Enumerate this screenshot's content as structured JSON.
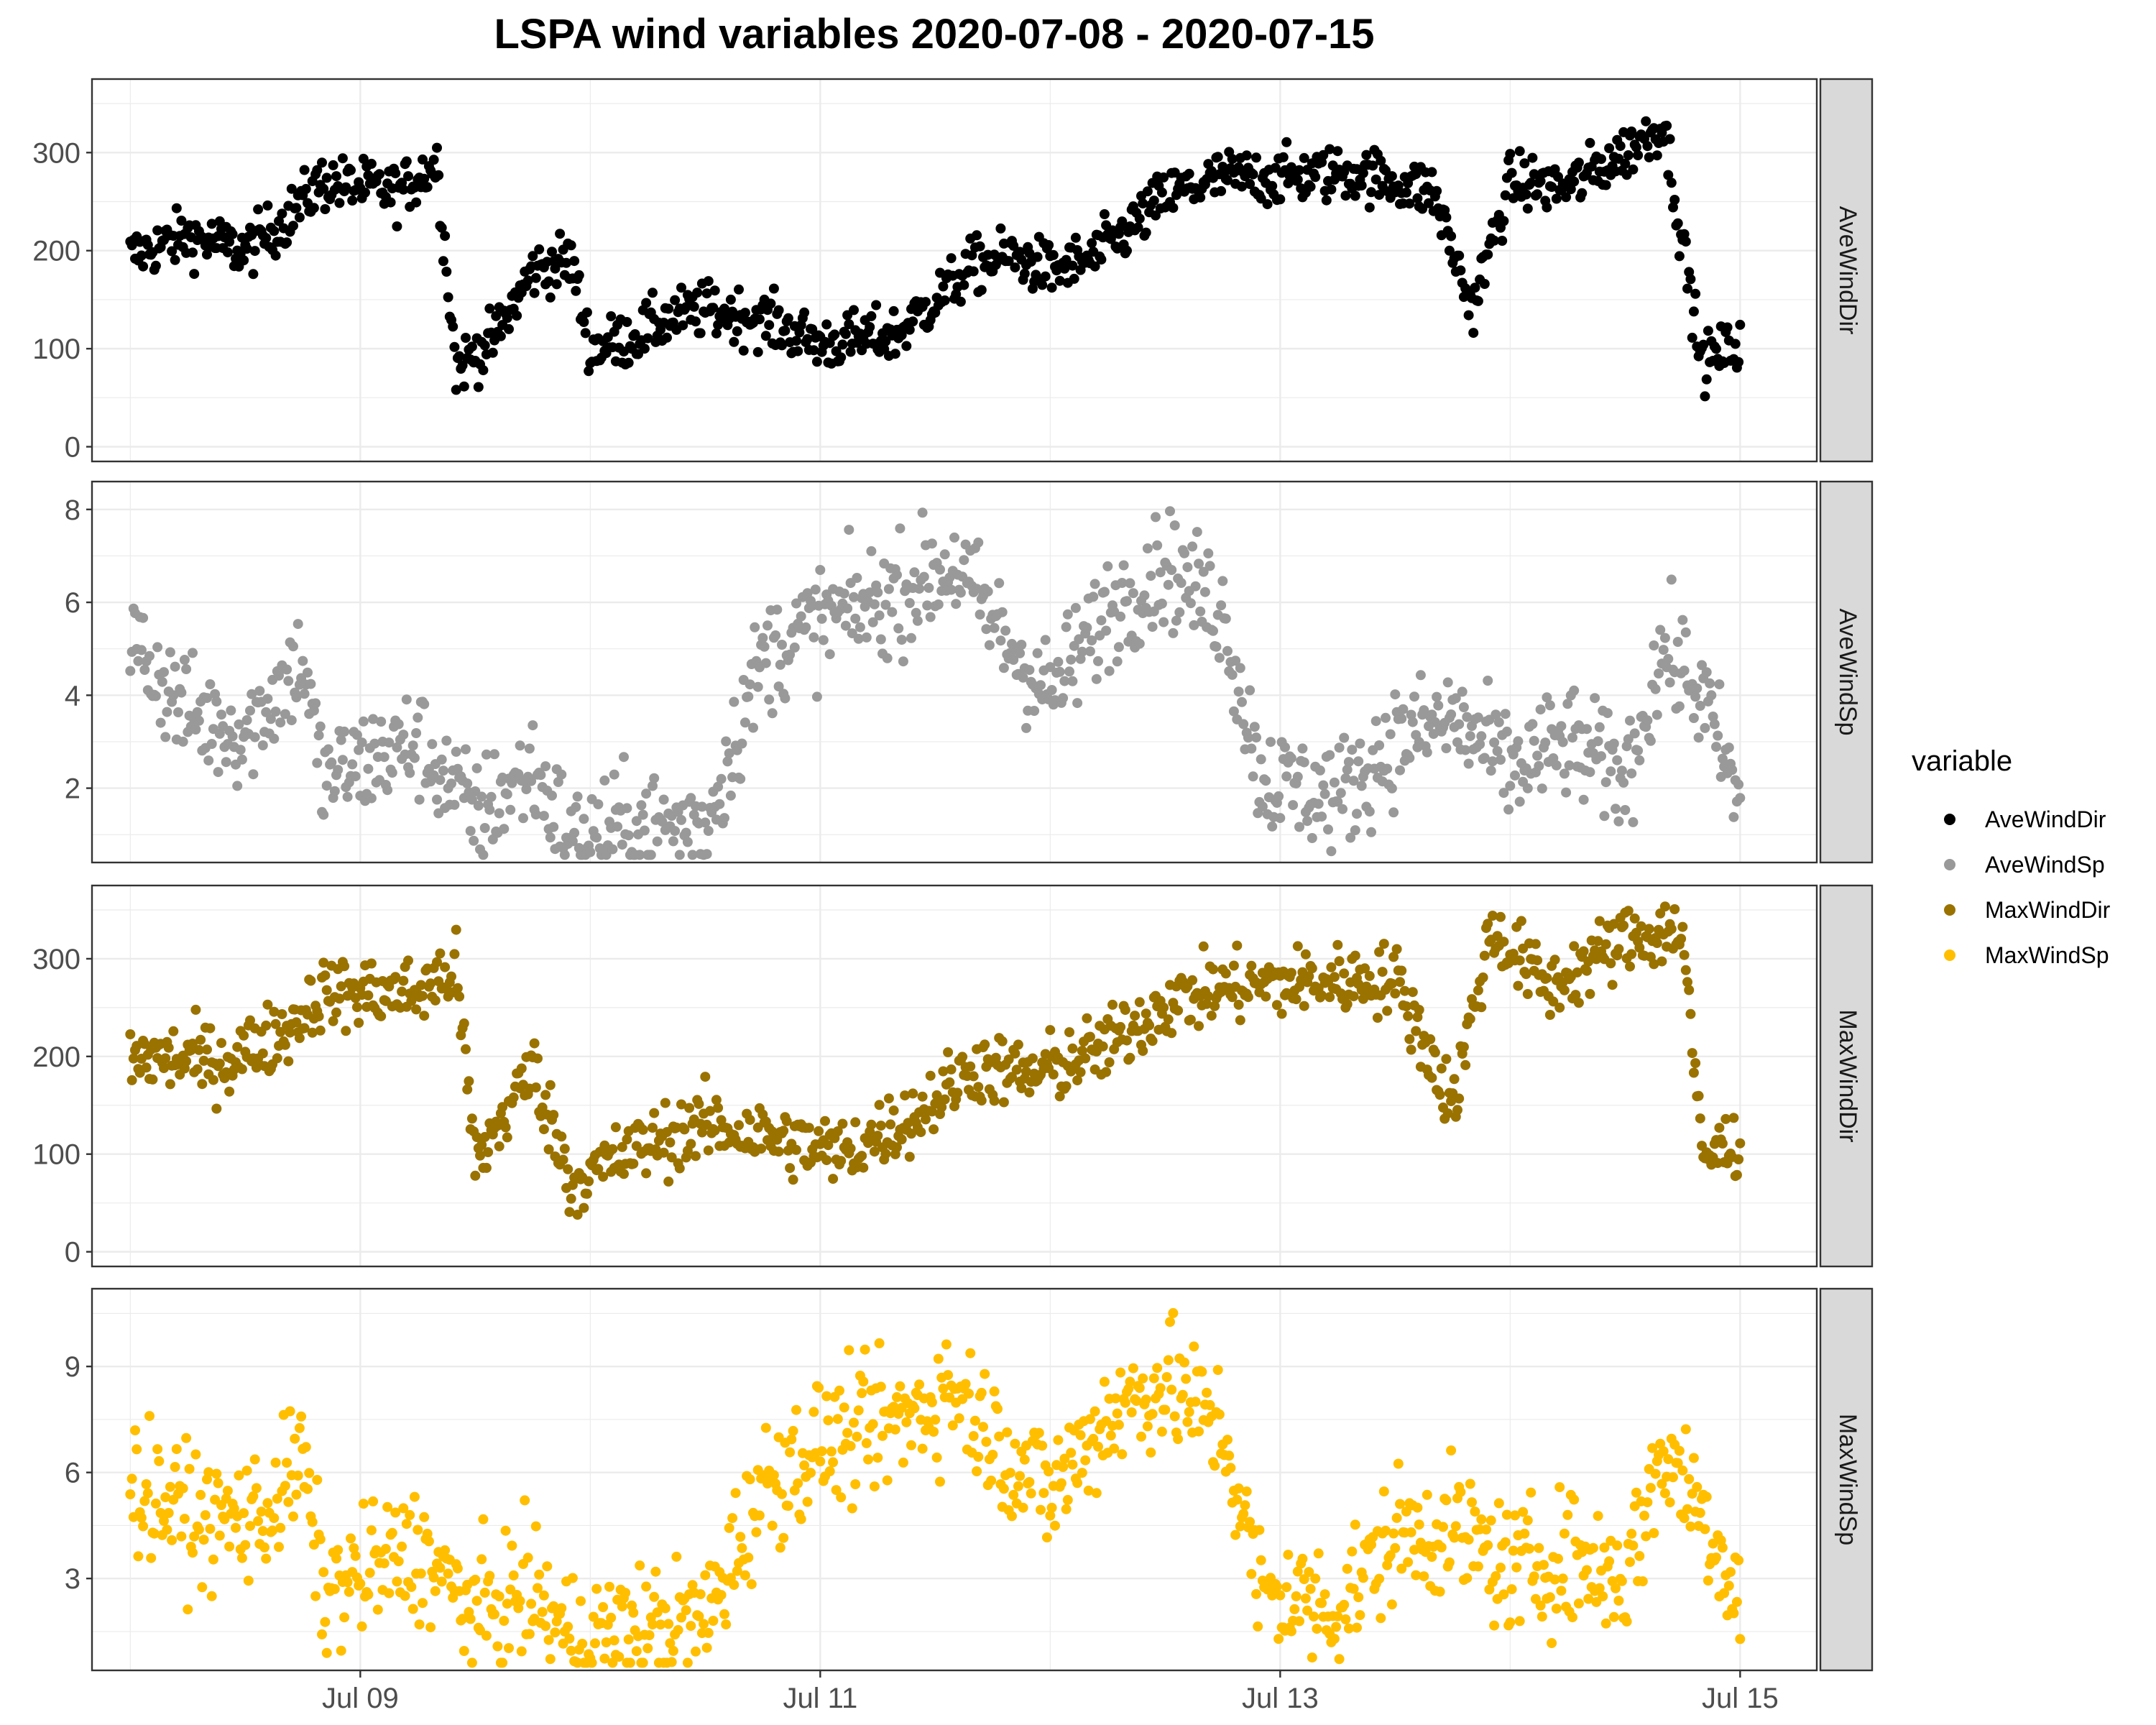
{
  "chart_data": {
    "type": "scatter",
    "title": "LSPA wind variables 2020-07-08 - 2020-07-15",
    "xlabel": "",
    "ylabel": "",
    "x_range": [
      "2020-07-07T20:00",
      "2020-07-15T08:00"
    ],
    "x_ticks": [
      {
        "label": "Jul 09",
        "value": "2020-07-09T00:00"
      },
      {
        "label": "Jul 11",
        "value": "2020-07-11T00:00"
      },
      {
        "label": "Jul 13",
        "value": "2020-07-13T00:00"
      },
      {
        "label": "Jul 15",
        "value": "2020-07-15T00:00"
      }
    ],
    "grid": true,
    "legend": {
      "title": "variable",
      "position": "right"
    },
    "panels": [
      {
        "name": "AveWindDir",
        "color": "#000000",
        "ylim": [
          -15,
          375
        ],
        "yticks": [
          0,
          100,
          200,
          300
        ],
        "profile": [
          [
            "2020-07-08T00:00",
            195
          ],
          [
            "2020-07-08T06:00",
            215
          ],
          [
            "2020-07-08T12:00",
            200
          ],
          [
            "2020-07-08T16:00",
            230
          ],
          [
            "2020-07-08T20:00",
            270
          ],
          [
            "2020-07-09T04:00",
            260
          ],
          [
            "2020-07-09T08:00",
            290
          ],
          [
            "2020-07-09T10:00",
            80
          ],
          [
            "2020-07-09T14:00",
            110
          ],
          [
            "2020-07-09T18:00",
            180
          ],
          [
            "2020-07-09T22:00",
            190
          ],
          [
            "2020-07-10T00:00",
            100
          ],
          [
            "2020-07-10T04:00",
            110
          ],
          [
            "2020-07-10T08:00",
            130
          ],
          [
            "2020-07-10T12:00",
            140
          ],
          [
            "2020-07-10T18:00",
            130
          ],
          [
            "2020-07-11T00:00",
            105
          ],
          [
            "2020-07-11T08:00",
            115
          ],
          [
            "2020-07-11T16:00",
            185
          ],
          [
            "2020-07-11T20:00",
            195
          ],
          [
            "2020-07-12T00:00",
            180
          ],
          [
            "2020-07-12T04:00",
            190
          ],
          [
            "2020-07-12T08:00",
            220
          ],
          [
            "2020-07-12T12:00",
            255
          ],
          [
            "2020-07-12T18:00",
            275
          ],
          [
            "2020-07-13T00:00",
            275
          ],
          [
            "2020-07-13T08:00",
            280
          ],
          [
            "2020-07-13T16:00",
            260
          ],
          [
            "2020-07-13T20:00",
            140
          ],
          [
            "2020-07-14T00:00",
            270
          ],
          [
            "2020-07-14T06:00",
            265
          ],
          [
            "2020-07-14T12:00",
            300
          ],
          [
            "2020-07-14T16:00",
            330
          ],
          [
            "2020-07-14T20:00",
            85
          ],
          [
            "2020-07-15T00:00",
            105
          ]
        ],
        "scatter": 14
      },
      {
        "name": "AveWindSp",
        "color": "#999999",
        "ylim": [
          0.4,
          8.6
        ],
        "yticks": [
          2,
          4,
          6,
          8
        ],
        "profile": [
          [
            "2020-07-08T00:00",
            5.2
          ],
          [
            "2020-07-08T06:00",
            3.6
          ],
          [
            "2020-07-08T12:00",
            3.2
          ],
          [
            "2020-07-08T18:00",
            4.8
          ],
          [
            "2020-07-08T20:00",
            2.2
          ],
          [
            "2020-07-09T06:00",
            3.0
          ],
          [
            "2020-07-09T12:00",
            1.4
          ],
          [
            "2020-07-09T18:00",
            2.4
          ],
          [
            "2020-07-09T22:00",
            0.9
          ],
          [
            "2020-07-10T06:00",
            1.2
          ],
          [
            "2020-07-10T12:00",
            1.2
          ],
          [
            "2020-07-10T18:00",
            4.8
          ],
          [
            "2020-07-11T00:00",
            5.6
          ],
          [
            "2020-07-11T06:00",
            6.0
          ],
          [
            "2020-07-11T14:00",
            6.8
          ],
          [
            "2020-07-11T20:00",
            5.0
          ],
          [
            "2020-07-12T00:00",
            4.0
          ],
          [
            "2020-07-12T06:00",
            5.8
          ],
          [
            "2020-07-12T12:00",
            6.8
          ],
          [
            "2020-07-12T18:00",
            5.8
          ],
          [
            "2020-07-12T22:00",
            2.2
          ],
          [
            "2020-07-13T06:00",
            1.8
          ],
          [
            "2020-07-13T12:00",
            3.0
          ],
          [
            "2020-07-13T18:00",
            3.5
          ],
          [
            "2020-07-14T00:00",
            2.4
          ],
          [
            "2020-07-14T06:00",
            3.0
          ],
          [
            "2020-07-14T12:00",
            2.2
          ],
          [
            "2020-07-14T16:00",
            5.0
          ],
          [
            "2020-07-14T20:00",
            4.0
          ],
          [
            "2020-07-15T00:00",
            1.6
          ]
        ],
        "scatter": 0.6
      },
      {
        "name": "MaxWindDir",
        "color": "#9A7200",
        "ylim": [
          -15,
          375
        ],
        "yticks": [
          0,
          100,
          200,
          300
        ],
        "profile": [
          [
            "2020-07-08T00:00",
            200
          ],
          [
            "2020-07-08T10:00",
            195
          ],
          [
            "2020-07-08T16:00",
            225
          ],
          [
            "2020-07-08T20:00",
            265
          ],
          [
            "2020-07-09T06:00",
            265
          ],
          [
            "2020-07-09T10:00",
            290
          ],
          [
            "2020-07-09T12:00",
            90
          ],
          [
            "2020-07-09T18:00",
            190
          ],
          [
            "2020-07-09T22:00",
            70
          ],
          [
            "2020-07-10T06:00",
            110
          ],
          [
            "2020-07-10T12:00",
            130
          ],
          [
            "2020-07-10T20:00",
            115
          ],
          [
            "2020-07-11T02:00",
            100
          ],
          [
            "2020-07-11T10:00",
            140
          ],
          [
            "2020-07-11T16:00",
            190
          ],
          [
            "2020-07-11T22:00",
            180
          ],
          [
            "2020-07-12T06:00",
            210
          ],
          [
            "2020-07-12T12:00",
            255
          ],
          [
            "2020-07-12T18:00",
            270
          ],
          [
            "2020-07-13T00:00",
            275
          ],
          [
            "2020-07-13T12:00",
            280
          ],
          [
            "2020-07-13T18:00",
            150
          ],
          [
            "2020-07-13T22:00",
            330
          ],
          [
            "2020-07-14T04:00",
            270
          ],
          [
            "2020-07-14T12:00",
            320
          ],
          [
            "2020-07-14T18:00",
            330
          ],
          [
            "2020-07-14T20:00",
            95
          ],
          [
            "2020-07-15T00:00",
            115
          ]
        ],
        "scatter": 18
      },
      {
        "name": "MaxWindSp",
        "color": "#FFBF00",
        "ylim": [
          0.4,
          11.2
        ],
        "yticks": [
          3,
          6,
          9
        ],
        "profile": [
          [
            "2020-07-08T00:00",
            5.6
          ],
          [
            "2020-07-08T08:00",
            4.6
          ],
          [
            "2020-07-08T14:00",
            4.8
          ],
          [
            "2020-07-08T18:00",
            6.4
          ],
          [
            "2020-07-08T20:00",
            2.6
          ],
          [
            "2020-07-09T06:00",
            3.8
          ],
          [
            "2020-07-09T12:00",
            2.0
          ],
          [
            "2020-07-09T18:00",
            2.6
          ],
          [
            "2020-07-09T22:00",
            1.3
          ],
          [
            "2020-07-10T12:00",
            1.8
          ],
          [
            "2020-07-10T18:00",
            5.6
          ],
          [
            "2020-07-11T00:00",
            6.8
          ],
          [
            "2020-07-11T08:00",
            7.4
          ],
          [
            "2020-07-11T14:00",
            8.4
          ],
          [
            "2020-07-11T20:00",
            6.4
          ],
          [
            "2020-07-12T00:00",
            5.4
          ],
          [
            "2020-07-12T06:00",
            7.6
          ],
          [
            "2020-07-12T12:00",
            8.6
          ],
          [
            "2020-07-12T18:00",
            7.2
          ],
          [
            "2020-07-12T22:00",
            2.6
          ],
          [
            "2020-07-13T06:00",
            2.2
          ],
          [
            "2020-07-13T12:00",
            4.2
          ],
          [
            "2020-07-13T18:00",
            4.4
          ],
          [
            "2020-07-14T00:00",
            3.2
          ],
          [
            "2020-07-14T06:00",
            3.6
          ],
          [
            "2020-07-14T12:00",
            3.0
          ],
          [
            "2020-07-14T16:00",
            6.6
          ],
          [
            "2020-07-14T20:00",
            5.0
          ],
          [
            "2020-07-15T00:00",
            2.4
          ]
        ],
        "scatter": 0.9
      }
    ]
  }
}
